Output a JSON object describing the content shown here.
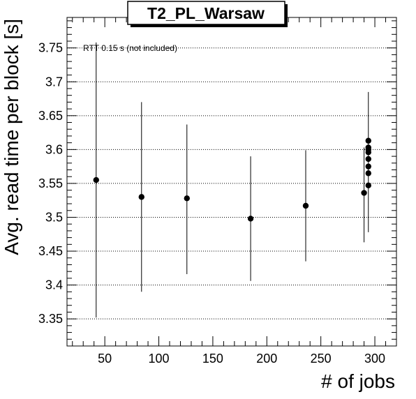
{
  "chart_data": {
    "type": "scatter",
    "title": "T2_PL_Warsaw",
    "xlabel": "# of jobs",
    "ylabel": "Avg. read time per block [s]",
    "annotation": "RTT 0.15 s (not included)",
    "xlim": [
      15,
      320
    ],
    "ylim": [
      3.31,
      3.795
    ],
    "x_ticks": [
      50,
      100,
      150,
      200,
      250,
      300
    ],
    "y_ticks": [
      3.35,
      3.4,
      3.45,
      3.5,
      3.55,
      3.6,
      3.65,
      3.7,
      3.75
    ],
    "y_tick_labels": [
      "3.35",
      "3.4",
      "3.45",
      "3.5",
      "3.55",
      "3.6",
      "3.65",
      "3.7",
      "3.75"
    ],
    "grid": {
      "x": false,
      "y": true
    },
    "marker_color": "#000000",
    "points": [
      {
        "x": 42,
        "y": 3.555,
        "err_low": 3.352,
        "err_high": 3.758
      },
      {
        "x": 84,
        "y": 3.53,
        "err_low": 3.39,
        "err_high": 3.67
      },
      {
        "x": 126,
        "y": 3.528,
        "err_low": 3.416,
        "err_high": 3.637
      },
      {
        "x": 185,
        "y": 3.498,
        "err_low": 3.406,
        "err_high": 3.59
      },
      {
        "x": 236,
        "y": 3.517,
        "err_low": 3.435,
        "err_high": 3.599
      },
      {
        "x": 290,
        "y": 3.536,
        "err_low": 3.463,
        "err_high": 3.603
      },
      {
        "x": 294,
        "y": 3.547,
        "err_low": null,
        "err_high": null
      },
      {
        "x": 294,
        "y": 3.565,
        "err_low": null,
        "err_high": null
      },
      {
        "x": 294,
        "y": 3.575,
        "err_low": null,
        "err_high": null
      },
      {
        "x": 294,
        "y": 3.586,
        "err_low": null,
        "err_high": null
      },
      {
        "x": 294,
        "y": 3.596,
        "err_low": null,
        "err_high": null
      },
      {
        "x": 294,
        "y": 3.6,
        "err_low": null,
        "err_high": null
      },
      {
        "x": 294,
        "y": 3.603,
        "err_low": 3.478,
        "err_high": 3.685
      },
      {
        "x": 294,
        "y": 3.613,
        "err_low": null,
        "err_high": null
      }
    ]
  }
}
